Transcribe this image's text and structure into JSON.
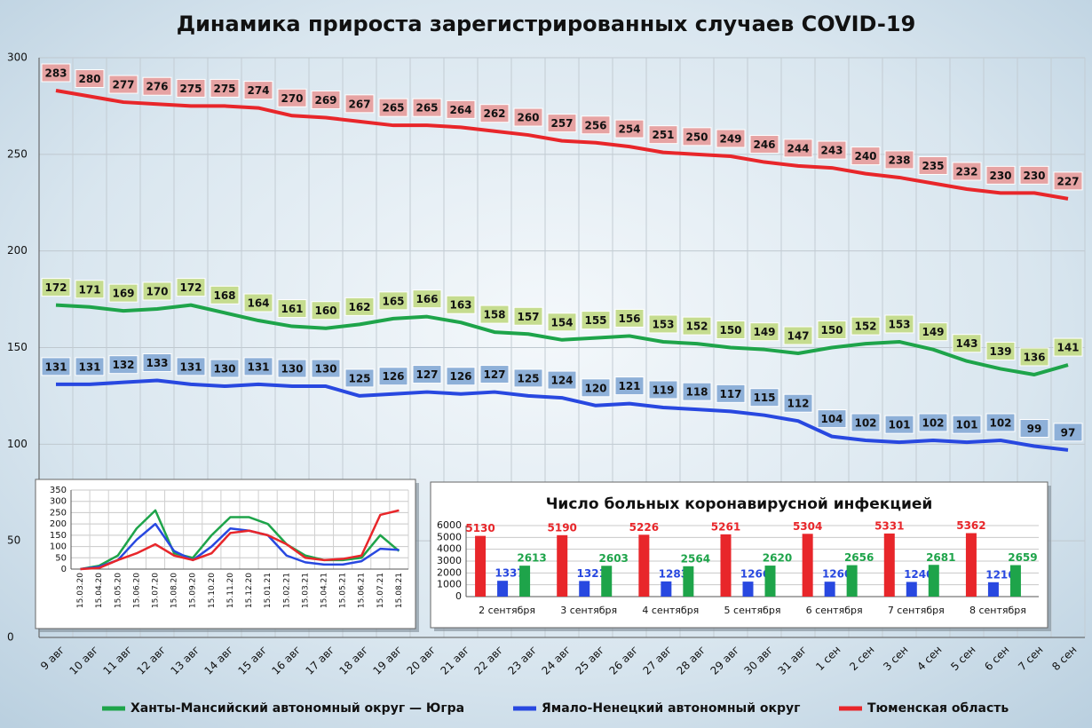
{
  "chart_data": [
    {
      "type": "line",
      "title": "Динамика прироста зарегистрированных случаев COVID-19",
      "categories": [
        "9 авг",
        "10 авг",
        "11 авг",
        "12 авг",
        "13 авг",
        "14 авг",
        "15 авг",
        "16 авг",
        "17 авг",
        "18 авг",
        "19 авг",
        "20 авг",
        "21 авг",
        "22 авг",
        "23 авг",
        "24 авг",
        "25 авг",
        "26 авг",
        "27 авг",
        "28 авг",
        "29 авг",
        "30 авг",
        "31 авг",
        "1 сен",
        "2 сен",
        "3 сен",
        "4 сен",
        "5 сен",
        "6 сен",
        "7 сен",
        "8 сен"
      ],
      "series": [
        {
          "name": "Ханты-Мансийский автономный округ — Югра",
          "color": "#1ea44a",
          "label_color": "#c5dc8f",
          "values": [
            172,
            171,
            169,
            170,
            172,
            168,
            164,
            161,
            160,
            162,
            165,
            166,
            163,
            158,
            157,
            154,
            155,
            156,
            153,
            152,
            150,
            149,
            147,
            150,
            152,
            153,
            149,
            143,
            139,
            136,
            141
          ]
        },
        {
          "name": "Ямало-Ненецкий автономный округ",
          "color": "#2848e0",
          "label_color": "#8eb0d8",
          "values": [
            131,
            131,
            132,
            133,
            131,
            130,
            131,
            130,
            130,
            125,
            126,
            127,
            126,
            127,
            125,
            124,
            120,
            121,
            119,
            118,
            117,
            115,
            112,
            104,
            102,
            101,
            102,
            101,
            102,
            99,
            97
          ]
        },
        {
          "name": "Тюменская область",
          "color": "#e8262a",
          "label_color": "#e6a3a3",
          "values": [
            283,
            280,
            277,
            276,
            275,
            275,
            274,
            270,
            269,
            267,
            265,
            265,
            264,
            262,
            260,
            257,
            256,
            254,
            251,
            250,
            249,
            246,
            244,
            243,
            240,
            238,
            235,
            232,
            230,
            230,
            227
          ]
        }
      ],
      "ylim": [
        0,
        300
      ],
      "yticks": [
        0,
        50,
        100,
        150,
        200,
        250,
        300
      ],
      "grid": true,
      "data_labels": true,
      "legend": "bottom"
    },
    {
      "type": "line",
      "categories": [
        "15.03.20",
        "15.04.20",
        "15.05.20",
        "15.06.20",
        "15.07.20",
        "15.08.20",
        "15.09.20",
        "15.10.20",
        "15.11.20",
        "15.12.20",
        "15.01.21",
        "15.02.21",
        "15.03.21",
        "15.04.21",
        "15.05.21",
        "15.06.21",
        "15.07.21",
        "15.08.21"
      ],
      "series": [
        {
          "color": "#1ea44a",
          "values": [
            0,
            15,
            60,
            180,
            260,
            70,
            50,
            150,
            230,
            230,
            200,
            110,
            60,
            40,
            40,
            50,
            150,
            80
          ]
        },
        {
          "color": "#2848e0",
          "values": [
            0,
            10,
            40,
            130,
            200,
            80,
            40,
            100,
            180,
            170,
            150,
            60,
            30,
            20,
            20,
            35,
            90,
            85
          ]
        },
        {
          "color": "#e8262a",
          "values": [
            0,
            5,
            40,
            70,
            110,
            60,
            40,
            70,
            160,
            170,
            150,
            110,
            50,
            40,
            45,
            60,
            240,
            260
          ]
        }
      ],
      "ylim": [
        0,
        350
      ],
      "yticks": [
        0,
        50,
        100,
        150,
        200,
        250,
        300,
        350
      ],
      "grid": true
    },
    {
      "type": "bar",
      "title": "Число больных коронавирусной  инфекцией",
      "categories": [
        "2 сентября",
        "3 сентября",
        "4 сентября",
        "5 сентября",
        "6 сентября",
        "7 сентября",
        "8 сентября"
      ],
      "series": [
        {
          "color": "#e8262a",
          "values": [
            5130,
            5190,
            5226,
            5261,
            5304,
            5331,
            5362
          ]
        },
        {
          "color": "#2848e0",
          "values": [
            1337,
            1321,
            1283,
            1266,
            1260,
            1240,
            1216
          ]
        },
        {
          "color": "#1ea44a",
          "values": [
            2613,
            2603,
            2564,
            2620,
            2656,
            2681,
            2659
          ]
        }
      ],
      "ylim": [
        0,
        6000
      ],
      "yticks": [
        0,
        1000,
        2000,
        3000,
        4000,
        5000,
        6000
      ],
      "grid": true,
      "data_labels": true
    }
  ]
}
